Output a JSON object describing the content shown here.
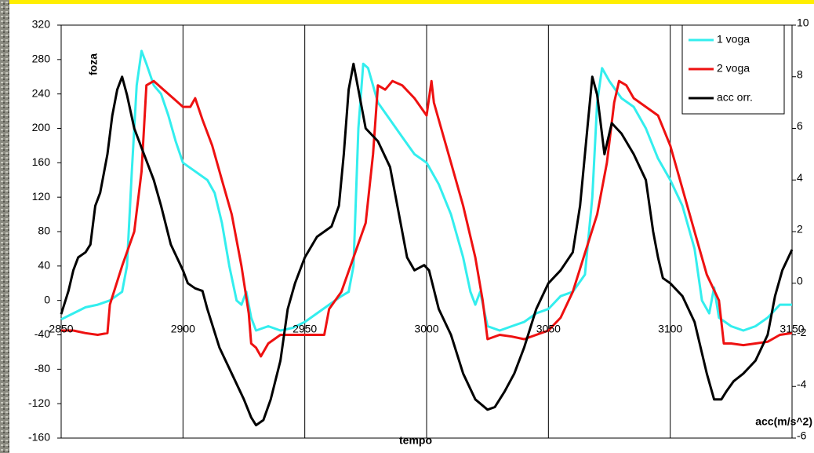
{
  "chart_data": {
    "type": "line",
    "y_label": "foza",
    "x_label": "tempo",
    "y2_label": "acc(m/s^2)",
    "xlim": [
      2850,
      3150
    ],
    "xticks": [
      2850,
      2900,
      2950,
      3000,
      3050,
      3100,
      3150
    ],
    "ylim": [
      -160,
      320
    ],
    "yticks": [
      -160,
      -120,
      -80,
      -40,
      0,
      40,
      80,
      120,
      160,
      200,
      240,
      280,
      320
    ],
    "y2lim": [
      -6,
      10
    ],
    "y2ticks": [
      -6,
      -4,
      -2,
      0,
      2,
      4,
      6,
      8,
      10
    ],
    "grid": "x",
    "legend": "top-right",
    "series": [
      {
        "name": "1 voga",
        "color": "#33eeee",
        "x": [
          2850,
          2855,
          2860,
          2865,
          2870,
          2875,
          2877,
          2879,
          2881,
          2883,
          2885,
          2888,
          2891,
          2894,
          2897,
          2900,
          2905,
          2910,
          2913,
          2916,
          2919,
          2922,
          2924,
          2926,
          2928,
          2930,
          2935,
          2940,
          2945,
          2950,
          2955,
          2960,
          2965,
          2968,
          2970,
          2972,
          2974,
          2976,
          2980,
          2985,
          2990,
          2995,
          3000,
          3005,
          3010,
          3015,
          3018,
          3020,
          3022,
          3025,
          3030,
          3035,
          3040,
          3045,
          3050,
          3055,
          3060,
          3065,
          3068,
          3070,
          3072,
          3075,
          3080,
          3085,
          3090,
          3095,
          3100,
          3105,
          3110,
          3113,
          3116,
          3118,
          3120,
          3125,
          3130,
          3135,
          3140,
          3145,
          3150
        ],
        "values": [
          -22,
          -15,
          -8,
          -5,
          0,
          10,
          40,
          150,
          250,
          290,
          275,
          250,
          240,
          215,
          185,
          160,
          150,
          140,
          125,
          90,
          40,
          0,
          -5,
          10,
          -20,
          -35,
          -30,
          -35,
          -32,
          -25,
          -15,
          -5,
          5,
          10,
          40,
          200,
          275,
          270,
          230,
          210,
          190,
          170,
          160,
          135,
          100,
          50,
          10,
          -5,
          10,
          -30,
          -35,
          -30,
          -25,
          -15,
          -10,
          5,
          10,
          30,
          120,
          230,
          270,
          255,
          235,
          225,
          200,
          165,
          140,
          110,
          60,
          0,
          -15,
          15,
          -20,
          -30,
          -35,
          -30,
          -20,
          -5,
          -5
        ]
      },
      {
        "name": "2 voga",
        "color": "#ee1111",
        "x": [
          2850,
          2855,
          2860,
          2865,
          2869,
          2870,
          2875,
          2880,
          2883,
          2885,
          2888,
          2892,
          2896,
          2900,
          2903,
          2905,
          2908,
          2912,
          2916,
          2920,
          2924,
          2927,
          2928,
          2930,
          2932,
          2935,
          2940,
          2945,
          2950,
          2958,
          2960,
          2965,
          2970,
          2975,
          2978,
          2980,
          2983,
          2986,
          2990,
          2995,
          3000,
          3002,
          3003,
          3006,
          3010,
          3015,
          3020,
          3023,
          3025,
          3030,
          3035,
          3040,
          3045,
          3050,
          3055,
          3060,
          3065,
          3070,
          3074,
          3077,
          3079,
          3082,
          3085,
          3090,
          3095,
          3100,
          3105,
          3110,
          3115,
          3120,
          3122,
          3125,
          3130,
          3135,
          3140,
          3145,
          3150
        ],
        "values": [
          -35,
          -35,
          -38,
          -40,
          -38,
          -5,
          40,
          80,
          150,
          250,
          255,
          245,
          235,
          225,
          225,
          235,
          210,
          180,
          140,
          100,
          40,
          -15,
          -50,
          -55,
          -65,
          -50,
          -40,
          -40,
          -40,
          -40,
          -10,
          10,
          50,
          90,
          170,
          250,
          245,
          255,
          250,
          235,
          215,
          255,
          230,
          200,
          160,
          110,
          50,
          0,
          -45,
          -40,
          -42,
          -45,
          -40,
          -35,
          -20,
          10,
          55,
          100,
          160,
          230,
          255,
          250,
          235,
          225,
          215,
          180,
          130,
          80,
          30,
          0,
          -50,
          -50,
          -52,
          -50,
          -48,
          -40,
          -38
        ]
      },
      {
        "name": "acc orr.",
        "color": "#000000",
        "axis": "y2",
        "x": [
          2850,
          2853,
          2855,
          2857,
          2860,
          2862,
          2864,
          2866,
          2869,
          2871,
          2873,
          2875,
          2877,
          2880,
          2884,
          2888,
          2891,
          2895,
          2900,
          2902,
          2905,
          2908,
          2910,
          2915,
          2920,
          2925,
          2928,
          2930,
          2933,
          2936,
          2940,
          2943,
          2946,
          2950,
          2955,
          2958,
          2961,
          2964,
          2966,
          2968,
          2970,
          2972,
          2975,
          2980,
          2985,
          2988,
          2992,
          2995,
          2999,
          3001,
          3005,
          3010,
          3015,
          3020,
          3025,
          3028,
          3032,
          3036,
          3040,
          3045,
          3050,
          3055,
          3060,
          3063,
          3066,
          3068,
          3070,
          3073,
          3076,
          3080,
          3085,
          3090,
          3093,
          3095,
          3097,
          3100,
          3105,
          3110,
          3115,
          3118,
          3121,
          3123,
          3126,
          3130,
          3135,
          3140,
          3143,
          3146,
          3150
        ],
        "values": [
          -1.2,
          -0.3,
          0.5,
          1.0,
          1.2,
          1.5,
          3.0,
          3.5,
          5.0,
          6.5,
          7.5,
          8.0,
          7.3,
          6.0,
          5.0,
          4.0,
          3.0,
          1.5,
          0.5,
          0.0,
          -0.2,
          -0.3,
          -1.0,
          -2.5,
          -3.5,
          -4.5,
          -5.2,
          -5.5,
          -5.3,
          -4.5,
          -3.0,
          -1.0,
          0.0,
          1.0,
          1.8,
          2.0,
          2.2,
          3.0,
          5.0,
          7.5,
          8.5,
          7.5,
          6.0,
          5.5,
          4.5,
          3.0,
          1.0,
          0.5,
          0.7,
          0.5,
          -1.0,
          -2.0,
          -3.5,
          -4.5,
          -4.9,
          -4.8,
          -4.2,
          -3.5,
          -2.5,
          -1.0,
          0.0,
          0.5,
          1.2,
          3.0,
          6.0,
          8.0,
          7.3,
          5.0,
          6.2,
          5.8,
          5.0,
          4.0,
          2.0,
          1.0,
          0.2,
          0.0,
          -0.5,
          -1.5,
          -3.5,
          -4.5,
          -4.5,
          -4.2,
          -3.8,
          -3.5,
          -3.0,
          -2.0,
          -0.5,
          0.5,
          1.3
        ]
      }
    ]
  }
}
